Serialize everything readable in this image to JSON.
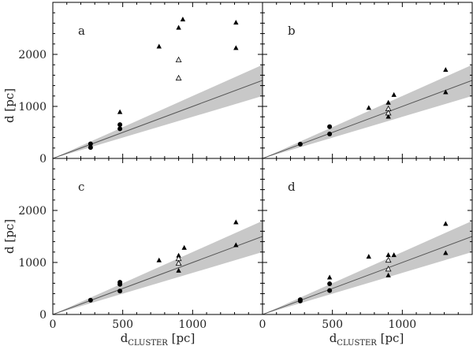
{
  "chart_data": {
    "type": "scatter",
    "shared_axes": {
      "xlim": [
        0,
        1500
      ],
      "ylim": [
        0,
        3000
      ],
      "x_ticks": [
        0,
        500,
        1000
      ],
      "x_tick_labels": [
        "0",
        "500",
        "1000"
      ],
      "y_ticks": [
        0,
        1000,
        2000
      ],
      "y_tick_labels": [
        "0",
        "1000",
        "2000"
      ],
      "xlabel_main": "d",
      "xlabel_sub": "CLUSTER",
      "xlabel_unit": " [pc]",
      "ylabel": "d [pc]",
      "grid": false
    },
    "reference_band": {
      "line_slope": 1.0,
      "lower_slope": 0.8,
      "upper_slope": 1.2,
      "band_color": "#c8c8c8",
      "line_color": "#555555"
    },
    "panels": [
      {
        "label": "a",
        "series": [
          {
            "marker": "filled-circle",
            "points": [
              [
                270,
                280
              ],
              [
                270,
                210
              ],
              [
                480,
                650
              ],
              [
                480,
                570
              ]
            ]
          },
          {
            "marker": "filled-triangle",
            "points": [
              [
                480,
                900
              ],
              [
                760,
                2160
              ],
              [
                900,
                2520
              ],
              [
                930,
                2680
              ],
              [
                1310,
                2620
              ],
              [
                1310,
                2130
              ]
            ]
          },
          {
            "marker": "open-triangle",
            "points": [
              [
                900,
                1900
              ],
              [
                900,
                1550
              ]
            ]
          }
        ]
      },
      {
        "label": "b",
        "series": [
          {
            "marker": "filled-circle",
            "points": [
              [
                270,
                275
              ],
              [
                480,
                610
              ],
              [
                480,
                470
              ]
            ]
          },
          {
            "marker": "filled-triangle",
            "points": [
              [
                760,
                980
              ],
              [
                900,
                1080
              ],
              [
                940,
                1230
              ],
              [
                900,
                810
              ],
              [
                1310,
                1710
              ],
              [
                1310,
                1280
              ]
            ]
          },
          {
            "marker": "open-triangle",
            "points": [
              [
                900,
                960
              ],
              [
                900,
                880
              ]
            ]
          }
        ]
      },
      {
        "label": "c",
        "series": [
          {
            "marker": "filled-circle",
            "points": [
              [
                270,
                275
              ],
              [
                480,
                620
              ],
              [
                480,
                580
              ],
              [
                480,
                450
              ]
            ]
          },
          {
            "marker": "filled-triangle",
            "points": [
              [
                760,
                1050
              ],
              [
                900,
                1140
              ],
              [
                940,
                1290
              ],
              [
                900,
                850
              ],
              [
                1310,
                1780
              ],
              [
                1310,
                1340
              ]
            ]
          },
          {
            "marker": "open-triangle",
            "points": [
              [
                900,
                1080
              ],
              [
                900,
                990
              ]
            ]
          }
        ]
      },
      {
        "label": "d",
        "series": [
          {
            "marker": "filled-circle",
            "points": [
              [
                270,
                285
              ],
              [
                270,
                260
              ],
              [
                480,
                590
              ],
              [
                480,
                460
              ]
            ]
          },
          {
            "marker": "filled-triangle",
            "points": [
              [
                480,
                720
              ],
              [
                760,
                1120
              ],
              [
                900,
                1150
              ],
              [
                940,
                1150
              ],
              [
                900,
                760
              ],
              [
                1310,
                1750
              ],
              [
                1310,
                1190
              ]
            ]
          },
          {
            "marker": "open-triangle",
            "points": [
              [
                900,
                1050
              ],
              [
                900,
                880
              ]
            ]
          }
        ]
      }
    ]
  }
}
